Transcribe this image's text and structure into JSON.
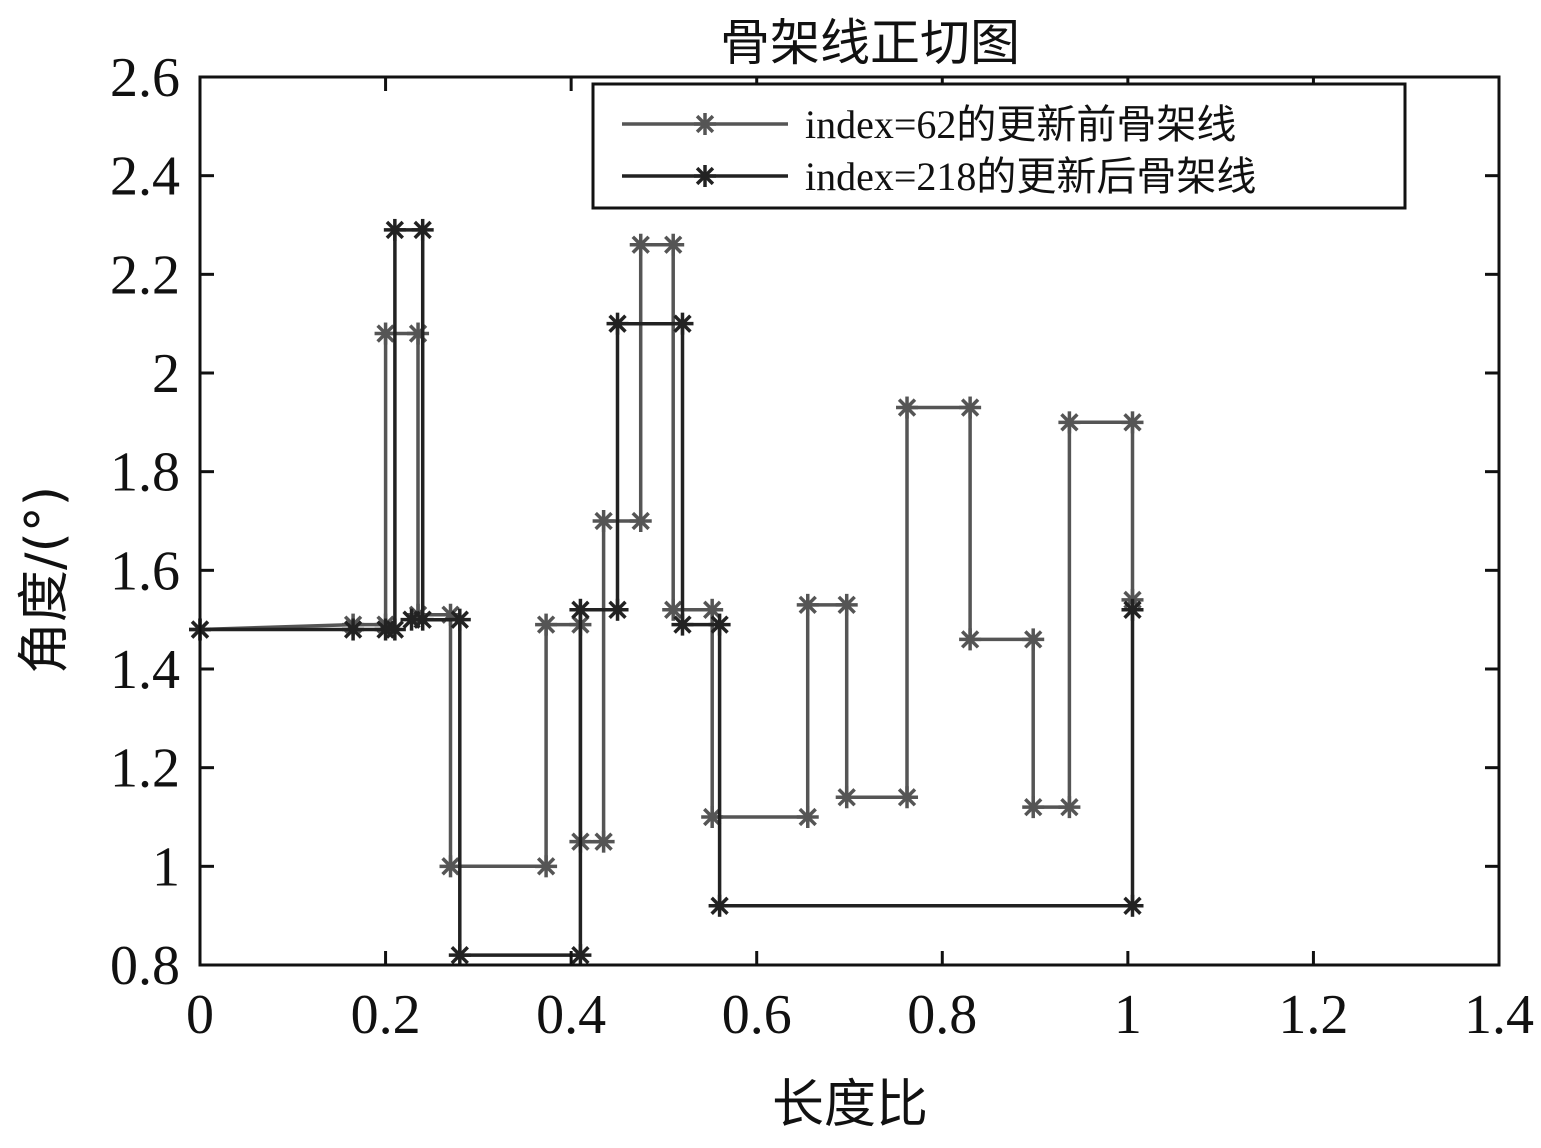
{
  "chart_data": {
    "type": "line",
    "title": "骨架线正切图",
    "xlabel": "长度比",
    "ylabel": "角度/(°)",
    "xlim": [
      0,
      1.4
    ],
    "ylim": [
      0.8,
      2.6
    ],
    "xticks": [
      "0",
      "0.2",
      "0.4",
      "0.6",
      "0.8",
      "1",
      "1.2",
      "1.4"
    ],
    "yticks": [
      "0.8",
      "1",
      "1.2",
      "1.4",
      "1.6",
      "1.8",
      "2",
      "2.2",
      "2.4",
      "2.6"
    ],
    "grid": false,
    "legend_position": "top-right",
    "series": [
      {
        "name": "index=62的更新前骨架线",
        "color": "#555555",
        "marker": "asterisk",
        "x": [
          0,
          0.165,
          0.2,
          0.2,
          0.235,
          0.235,
          0.27,
          0.27,
          0.373,
          0.373,
          0.41,
          0.41,
          0.435,
          0.435,
          0.475,
          0.475,
          0.51,
          0.51,
          0.552,
          0.552,
          0.655,
          0.655,
          0.697,
          0.697,
          0.762,
          0.762,
          0.83,
          0.83,
          0.898,
          0.898,
          0.937,
          0.937,
          1.005,
          1.005
        ],
        "y": [
          1.48,
          1.49,
          1.49,
          2.08,
          2.08,
          1.51,
          1.51,
          1.0,
          1.0,
          1.49,
          1.49,
          1.05,
          1.05,
          1.7,
          1.7,
          2.26,
          2.26,
          1.52,
          1.52,
          1.1,
          1.1,
          1.53,
          1.53,
          1.14,
          1.14,
          1.93,
          1.93,
          1.46,
          1.46,
          1.12,
          1.12,
          1.9,
          1.9,
          1.54
        ]
      },
      {
        "name": "index=218的更新后骨架线",
        "color": "#222222",
        "marker": "asterisk",
        "x": [
          0,
          0.165,
          0.2,
          0.21,
          0.21,
          0.24,
          0.24,
          0.228,
          0.28,
          0.28,
          0.41,
          0.41,
          0.45,
          0.45,
          0.52,
          0.52,
          0.56,
          0.56,
          1.005,
          1.005
        ],
        "y": [
          1.48,
          1.48,
          1.48,
          1.48,
          2.29,
          2.29,
          1.5,
          1.5,
          1.5,
          0.82,
          0.82,
          1.52,
          1.52,
          2.1,
          2.1,
          1.49,
          1.49,
          0.92,
          0.92,
          1.52
        ]
      }
    ]
  }
}
